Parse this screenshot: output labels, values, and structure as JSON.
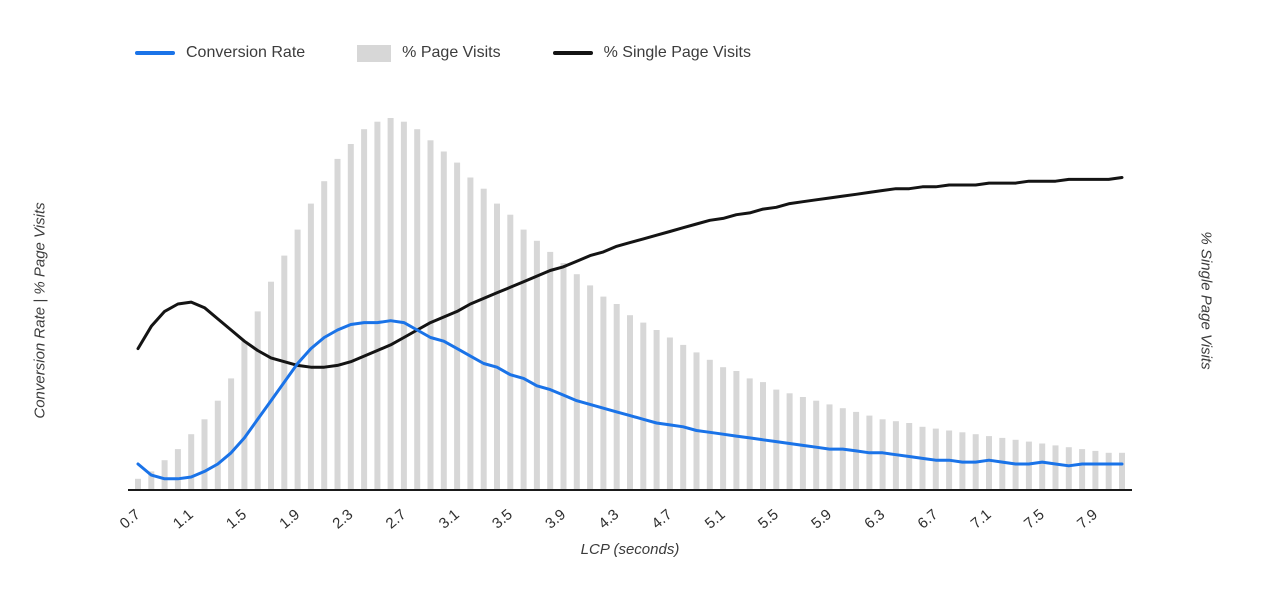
{
  "legend": {
    "items": [
      {
        "label": "Conversion Rate",
        "type": "line",
        "color": "#1a73e8"
      },
      {
        "label": "% Page Visits",
        "type": "bar",
        "color": "#d7d7d7"
      },
      {
        "label": "% Single Page Visits",
        "type": "line",
        "color": "#141414"
      }
    ]
  },
  "chart_data": {
    "type": "combo",
    "xlabel": "LCP (seconds)",
    "ylabel_left": "Conversion Rate | % Page Visits",
    "ylabel_right": "% Single Page Visits",
    "x_ticks": [
      "0.7",
      "1.1",
      "1.5",
      "1.9",
      "2.3",
      "2.7",
      "3.1",
      "3.5",
      "3.9",
      "4.3",
      "4.7",
      "5.1",
      "5.5",
      "5.9",
      "6.3",
      "6.7",
      "7.1",
      "7.5",
      "7.9"
    ],
    "x_range": [
      0.7,
      8.1
    ],
    "ylim": [
      0,
      100
    ],
    "y_units": "relative height, % of plot (y axes unlabeled in figure)",
    "grid": false,
    "legend_position": "top",
    "x": [
      0.7,
      0.8,
      0.9,
      1.0,
      1.1,
      1.2,
      1.3,
      1.4,
      1.5,
      1.6,
      1.7,
      1.8,
      1.9,
      2.0,
      2.1,
      2.2,
      2.3,
      2.4,
      2.5,
      2.6,
      2.7,
      2.8,
      2.9,
      3.0,
      3.1,
      3.2,
      3.3,
      3.4,
      3.5,
      3.6,
      3.7,
      3.8,
      3.9,
      4.0,
      4.1,
      4.2,
      4.3,
      4.4,
      4.5,
      4.6,
      4.7,
      4.8,
      4.9,
      5.0,
      5.1,
      5.2,
      5.3,
      5.4,
      5.5,
      5.6,
      5.7,
      5.8,
      5.9,
      6.0,
      6.1,
      6.2,
      6.3,
      6.4,
      6.5,
      6.6,
      6.7,
      6.8,
      6.9,
      7.0,
      7.1,
      7.2,
      7.3,
      7.4,
      7.5,
      7.6,
      7.7,
      7.8,
      7.9,
      8.0,
      8.1
    ],
    "series": [
      {
        "name": "% Page Visits",
        "type": "bar",
        "color": "#d7d7d7",
        "values": [
          3,
          5,
          8,
          11,
          15,
          19,
          24,
          30,
          40,
          48,
          56,
          63,
          70,
          77,
          83,
          89,
          93,
          97,
          99,
          100,
          99,
          97,
          94,
          91,
          88,
          84,
          81,
          77,
          74,
          70,
          67,
          64,
          61,
          58,
          55,
          52,
          50,
          47,
          45,
          43,
          41,
          39,
          37,
          35,
          33,
          32,
          30,
          29,
          27,
          26,
          25,
          24,
          23,
          22,
          21,
          20,
          19,
          18.5,
          18,
          17,
          16.5,
          16,
          15.5,
          15,
          14.5,
          14,
          13.5,
          13,
          12.5,
          12,
          11.5,
          11,
          10.5,
          10,
          10
        ]
      },
      {
        "name": "% Single Page Visits",
        "type": "line",
        "color": "#141414",
        "values": [
          38,
          44,
          48,
          50,
          50.5,
          49,
          46,
          43,
          40,
          37.5,
          35.5,
          34.5,
          33.5,
          33,
          33,
          33.5,
          34.5,
          36,
          37.5,
          39,
          41,
          43,
          45,
          46.5,
          48,
          50,
          51.5,
          53,
          54.5,
          56,
          57.5,
          59,
          60,
          61.5,
          63,
          64,
          65.5,
          66.5,
          67.5,
          68.5,
          69.5,
          70.5,
          71.5,
          72.5,
          73,
          74,
          74.5,
          75.5,
          76,
          77,
          77.5,
          78,
          78.5,
          79,
          79.5,
          80,
          80.5,
          81,
          81,
          81.5,
          81.5,
          82,
          82,
          82,
          82.5,
          82.5,
          82.5,
          83,
          83,
          83,
          83.5,
          83.5,
          83.5,
          83.5,
          84
        ]
      },
      {
        "name": "Conversion Rate",
        "type": "line",
        "color": "#1a73e8",
        "values": [
          7,
          4,
          3,
          3,
          3.5,
          5,
          7,
          10,
          14,
          19,
          24,
          29,
          34,
          38,
          41,
          43,
          44.5,
          45,
          45,
          45.5,
          45,
          43,
          41,
          40,
          38,
          36,
          34,
          33,
          31,
          30,
          28,
          27,
          25.5,
          24,
          23,
          22,
          21,
          20,
          19,
          18,
          17.5,
          17,
          16,
          15.5,
          15,
          14.5,
          14,
          13.5,
          13,
          12.5,
          12,
          11.5,
          11,
          11,
          10.5,
          10,
          10,
          9.5,
          9,
          8.5,
          8,
          8,
          7.5,
          7.5,
          8,
          7.5,
          7,
          7,
          7.5,
          7,
          6.5,
          7,
          7,
          7,
          7
        ]
      }
    ]
  }
}
